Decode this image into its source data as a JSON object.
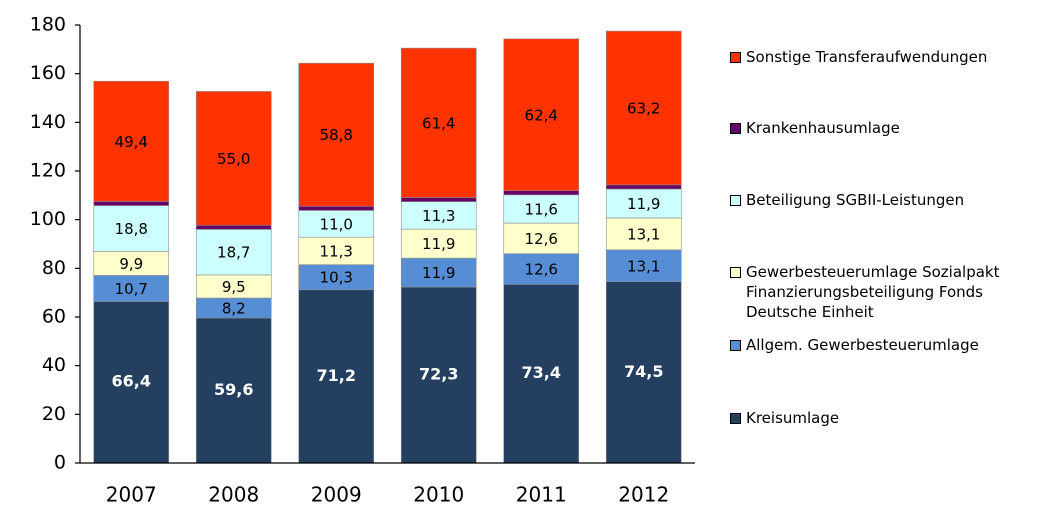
{
  "chart_data": {
    "type": "stacked_bar",
    "categories": [
      "2007",
      "2008",
      "2009",
      "2010",
      "2011",
      "2012"
    ],
    "ylim": [
      0,
      180
    ],
    "yticks": [
      0,
      20,
      40,
      60,
      80,
      100,
      120,
      140,
      160,
      180
    ],
    "grid": false,
    "legend": "right",
    "series": [
      {
        "name": "Kreisumlage",
        "color": "#243f60",
        "values": [
          66.4,
          59.6,
          71.2,
          72.3,
          73.4,
          74.5
        ],
        "value_labels": [
          "66,4",
          "59,6",
          "71,2",
          "72,3",
          "73,4",
          "74,5"
        ]
      },
      {
        "name": "Allgem. Gewerbesteuerumlage",
        "color": "#558ed5",
        "values": [
          10.7,
          8.2,
          10.3,
          11.9,
          12.6,
          13.1
        ],
        "value_labels": [
          "10,7",
          "8,2",
          "10,3",
          "11,9",
          "12,6",
          "13,1"
        ]
      },
      {
        "name": "Gewerbesteuerumlage Sozialpakt\nFinanzierungsbeteiligung Fonds\nDeutsche Einheit",
        "color": "#ffffcc",
        "values": [
          9.9,
          9.5,
          11.3,
          11.9,
          12.6,
          13.1
        ],
        "value_labels": [
          "9,9",
          "9,5",
          "11,3",
          "11,9",
          "12,6",
          "13,1"
        ]
      },
      {
        "name": "Beteiligung SGBII-Leistungen",
        "color": "#ccffff",
        "values": [
          18.8,
          18.7,
          11.0,
          11.3,
          11.6,
          11.9
        ],
        "value_labels": [
          "18,8",
          "18,7",
          "11,0",
          "11,3",
          "11,6",
          "11,9"
        ]
      },
      {
        "name": "Krankenhausumlage",
        "color": "#660066",
        "values": [
          1.7,
          1.7,
          1.7,
          1.7,
          1.7,
          1.7
        ],
        "value_labels": [
          "1,7",
          "1,7",
          "1,7",
          "1,7",
          "1,7",
          "1,7"
        ]
      },
      {
        "name": "Sonstige Transferaufwendungen",
        "color": "#ff3300",
        "values": [
          49.4,
          55.0,
          58.8,
          61.4,
          62.4,
          63.2
        ],
        "value_labels": [
          "49,4",
          "55,0",
          "58,8",
          "61,4",
          "62,4",
          "63,2"
        ]
      }
    ]
  }
}
